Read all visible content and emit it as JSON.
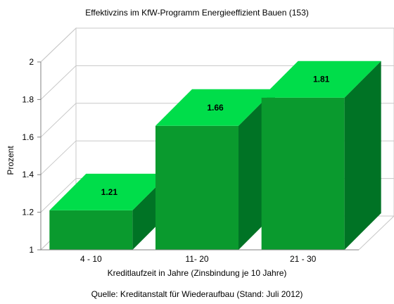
{
  "chart_data": {
    "type": "bar",
    "title": "Effektivzins im KfW-Programm Energieeffizient Bauen (153)",
    "xlabel": "Kreditlaufzeit in Jahre (Zinsbindung je 10 Jahre)",
    "ylabel": "Prozent",
    "categories": [
      "4 - 10",
      "11- 20",
      "21 - 30"
    ],
    "values": [
      1.21,
      1.66,
      1.81
    ],
    "value_labels": [
      "1.21",
      "1.66",
      "1.81"
    ],
    "ylim": [
      1,
      2
    ],
    "yticks": [
      1,
      1.2,
      1.4,
      1.6,
      1.8,
      2
    ],
    "ytick_labels": [
      "1",
      "1.2",
      "1.4",
      "1.6",
      "1.8",
      "2"
    ],
    "grid": true,
    "style": "3d",
    "colors": {
      "bar_front": "#0a9a2e",
      "bar_top": "#00dd4a",
      "bar_side": "#007325"
    }
  },
  "caption": "Quelle: Kreditanstalt für Wiederaufbau (Stand: Juli 2012)"
}
